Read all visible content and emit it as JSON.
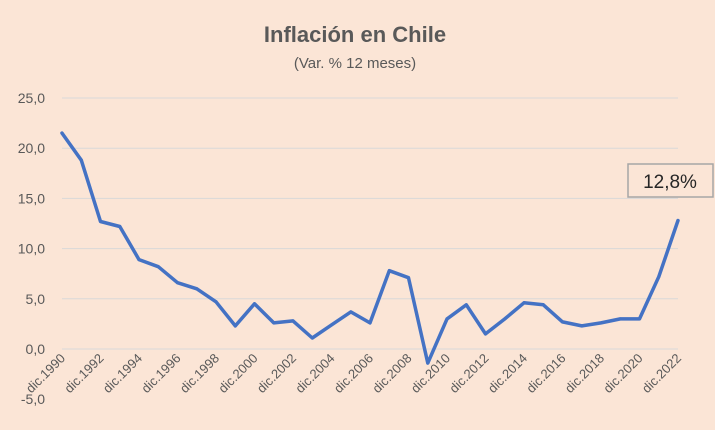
{
  "chart_data": {
    "type": "line",
    "title": "Inflación en Chile",
    "subtitle": "(Var. % 12 meses)",
    "xlabel": "",
    "ylabel": "",
    "ylim": [
      0,
      25
    ],
    "yticks": [
      "25,0",
      "20,0",
      "15,0",
      "10,0",
      "5,0",
      "0,0",
      "-5,0"
    ],
    "x_tick_labels": [
      "dic.1990",
      "dic.1992",
      "dic.1994",
      "dic.1996",
      "dic.1998",
      "dic.2000",
      "dic.2002",
      "dic.2004",
      "dic.2006",
      "dic.2008",
      "dic.2010",
      "dic.2012",
      "dic.2014",
      "dic.2016",
      "dic.2018",
      "dic.2020",
      "dic.2022"
    ],
    "grid": true,
    "legend": "none",
    "color": "#4472c4",
    "series": [
      {
        "x": [
          1990,
          1991,
          1992,
          1993,
          1994,
          1995,
          1996,
          1997,
          1998,
          1999,
          2000,
          2001,
          2002,
          2003,
          2004,
          2005,
          2006,
          2007,
          2008,
          2009,
          2010,
          2011,
          2012,
          2013,
          2014,
          2015,
          2016,
          2017,
          2018,
          2019,
          2020,
          2021,
          2022
        ],
        "values": [
          21.5,
          18.8,
          12.7,
          12.2,
          8.9,
          8.2,
          6.6,
          6.0,
          4.7,
          2.3,
          4.5,
          2.6,
          2.8,
          1.1,
          2.4,
          3.7,
          2.6,
          7.8,
          7.1,
          -1.4,
          3.0,
          4.4,
          1.5,
          3.0,
          4.6,
          4.4,
          2.7,
          2.3,
          2.6,
          3.0,
          3.0,
          7.2,
          12.8
        ]
      }
    ],
    "annotation": "12,8%"
  }
}
